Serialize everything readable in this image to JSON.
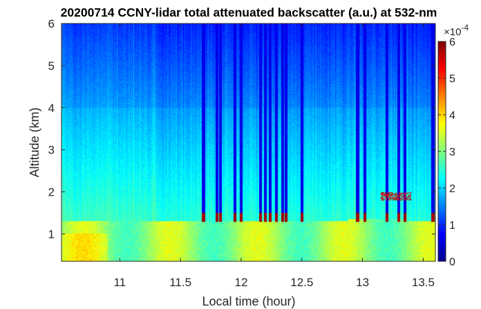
{
  "chart_data": {
    "type": "heatmap",
    "title": "20200714 CCNY-lidar total attenuated backscatter (a.u.) at 532-nm",
    "xlabel": "Local time (hour)",
    "ylabel": "Altitude (km)",
    "xlim": [
      10.52,
      13.6
    ],
    "ylim": [
      0.35,
      6.0
    ],
    "xticks": [
      "11",
      "11.5",
      "12",
      "12.5",
      "13",
      "13.5"
    ],
    "xtick_values": [
      11,
      11.5,
      12,
      12.5,
      13,
      13.5
    ],
    "yticks": [
      "1",
      "2",
      "3",
      "4",
      "5",
      "6"
    ],
    "ytick_values": [
      1,
      2,
      3,
      4,
      5,
      6
    ],
    "colorbar": {
      "label_exponent": "×10",
      "exponent_power": "-4",
      "range": [
        0,
        6
      ],
      "ticks": [
        "0",
        "1",
        "2",
        "3",
        "4",
        "5",
        "6"
      ],
      "tick_values": [
        0,
        1,
        2,
        3,
        4,
        5,
        6
      ],
      "colormap": "jet"
    },
    "features": {
      "boundary_layer_top_km": 1.3,
      "cloud_base_km_typical": 1.35,
      "cloud_columns_hours": [
        11.69,
        11.8,
        11.83,
        11.95,
        12.0,
        12.16,
        12.2,
        12.24,
        12.29,
        12.34,
        12.37,
        12.5,
        12.96,
        13.02,
        13.2,
        13.3,
        13.35,
        13.58
      ],
      "elevated_cloud_base_km_late": 1.9
    }
  }
}
